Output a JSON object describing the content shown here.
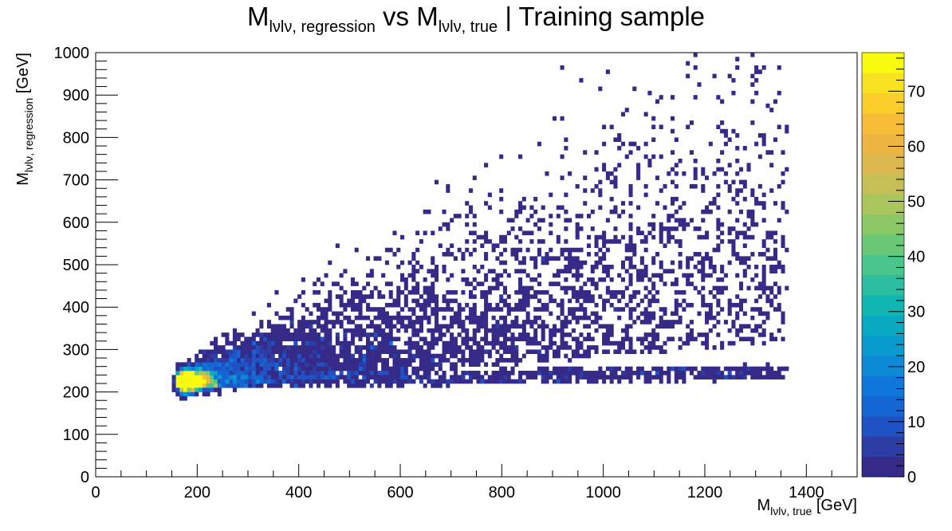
{
  "chart_data": {
    "type": "heatmap",
    "title": {
      "part1": "M",
      "part1_sub": "lνlν, regression",
      "part2": " vs M",
      "part2_sub": "lνlν, true",
      "part3": " | Training sample"
    },
    "xlabel": {
      "main": "M",
      "sub": "lνlν, true",
      "unit": " [GeV]"
    },
    "ylabel": {
      "main": "M",
      "sub": "lνlν, regression",
      "unit": " [GeV]"
    },
    "xlim": [
      0,
      1500
    ],
    "ylim": [
      0,
      1000
    ],
    "x_ticks": [
      "0",
      "200",
      "400",
      "600",
      "800",
      "1000",
      "1200",
      "1400"
    ],
    "y_ticks": [
      "0",
      "100",
      "200",
      "300",
      "400",
      "500",
      "600",
      "700",
      "800",
      "900",
      "1000"
    ],
    "bin_width_x": 7.5,
    "bin_width_y": 10,
    "zlim": [
      0,
      77
    ],
    "z_ticks": [
      "0",
      "10",
      "20",
      "30",
      "40",
      "50",
      "60",
      "70"
    ],
    "colormap": [
      "#352a87",
      "#2c3ea6",
      "#1f52c5",
      "#1565d4",
      "#0f77db",
      "#0d8ad6",
      "#0a9bce",
      "#07aac1",
      "#10b6b2",
      "#2bbea0",
      "#4ac58c",
      "#6ac977",
      "#8bc966",
      "#a9c55b",
      "#c5bf55",
      "#dcb84f",
      "#edb541",
      "#f8bd36",
      "#fbce2b",
      "#f8e21f",
      "#f9fb0e"
    ],
    "grid": false,
    "core_peak": {
      "x": 180,
      "y": 225,
      "count": 77
    }
  }
}
